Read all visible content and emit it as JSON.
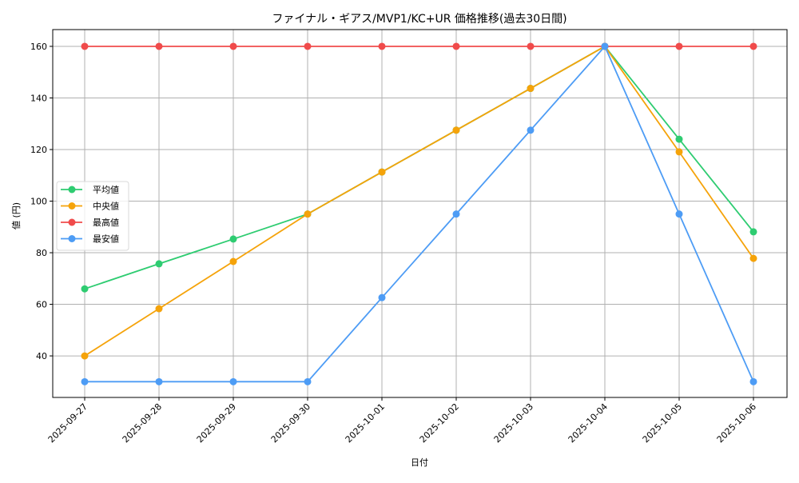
{
  "chart_data": {
    "type": "line",
    "title": "ファイナル・ギアス/MVP1/KC+UR 価格推移(過去30日間)",
    "xlabel": "日付",
    "ylabel": "値 (円)",
    "categories": [
      "2025-09-27",
      "2025-09-28",
      "2025-09-29",
      "2025-09-30",
      "2025-10-01",
      "2025-10-02",
      "2025-10-03",
      "2025-10-04",
      "2025-10-05",
      "2025-10-06"
    ],
    "series": [
      {
        "name": "平均値",
        "color": "#2ecc71",
        "values": [
          66.0,
          75.7,
          85.3,
          95.0,
          111.3,
          127.5,
          143.7,
          160.0,
          124.0,
          88.1
        ]
      },
      {
        "name": "中央値",
        "color": "#f5a30a",
        "values": [
          40.0,
          58.3,
          76.6,
          95.0,
          111.3,
          127.5,
          143.7,
          160.0,
          119.1,
          77.8
        ]
      },
      {
        "name": "最高値",
        "color": "#f04b4b",
        "values": [
          160,
          160,
          160,
          160,
          160,
          160,
          160,
          160,
          160,
          160
        ]
      },
      {
        "name": "最安値",
        "color": "#4d9cf5",
        "values": [
          30,
          30,
          30,
          30,
          62.6,
          95.0,
          127.5,
          160.0,
          95.0,
          30
        ]
      }
    ],
    "yticks": [
      40,
      60,
      80,
      100,
      120,
      140,
      160
    ],
    "ylim": [
      23.9,
      166.5
    ],
    "grid": true,
    "legend_position": "center left",
    "marker": "circle",
    "x_tick_rotation": 45
  }
}
